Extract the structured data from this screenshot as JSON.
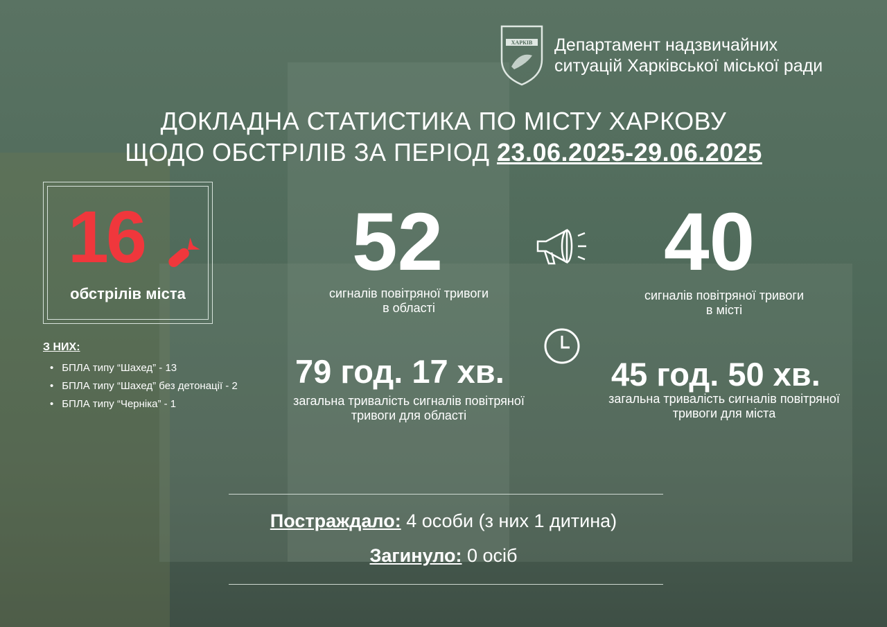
{
  "header": {
    "logo_text": "ДЕПАРТАМЕНТ НАДЗВИЧАЙНИХ СИТУАЦІЙ ХАРКІВ",
    "dept_line1": "Департамент надзвичайних",
    "dept_line2": "ситуацій Харківської міської ради"
  },
  "title": {
    "line1": "ДОКЛАДНА СТАТИСТИКА ПО МІСТУ ХАРКОВУ",
    "line2_prefix": "ЩОДО ОБСТРІЛІВ ЗА ПЕРІОД ",
    "period": "23.06.2025-29.06.2025"
  },
  "shelling": {
    "count": "16",
    "label": "обстрілів міста",
    "of_them": "З НИХ:",
    "items": [
      "БПЛА типу “Шахед” - 13",
      "БПЛА типу “Шахед” без детонації - 2",
      "БПЛА типу “Черніка” - 1"
    ]
  },
  "alerts": {
    "region_count": "52",
    "region_label1": "сигналів повітряної тривоги",
    "region_label2": "в області",
    "city_count": "40",
    "city_label1": "сигналів повітряної тривоги",
    "city_label2": "в місті"
  },
  "duration": {
    "region": "79 год. 17 хв.",
    "region_label1": "загальна тривалість сигналів повітряної",
    "region_label2": "тривоги для області",
    "city": "45 год. 50 хв.",
    "city_label1": "загальна тривалість сигналів повітряної",
    "city_label2": "тривоги для міста"
  },
  "casualties": {
    "injured_label": "Постраждало:",
    "injured_value": " 4 особи (з них 1 дитина)",
    "killed_label": "Загинуло:",
    "killed_value": " 0 осіб"
  },
  "colors": {
    "accent_red": "#f0373c",
    "background": "#4f6a5a"
  },
  "icons": {
    "shell": "missile-icon",
    "alert": "megaphone-icon",
    "duration": "clock-icon"
  }
}
